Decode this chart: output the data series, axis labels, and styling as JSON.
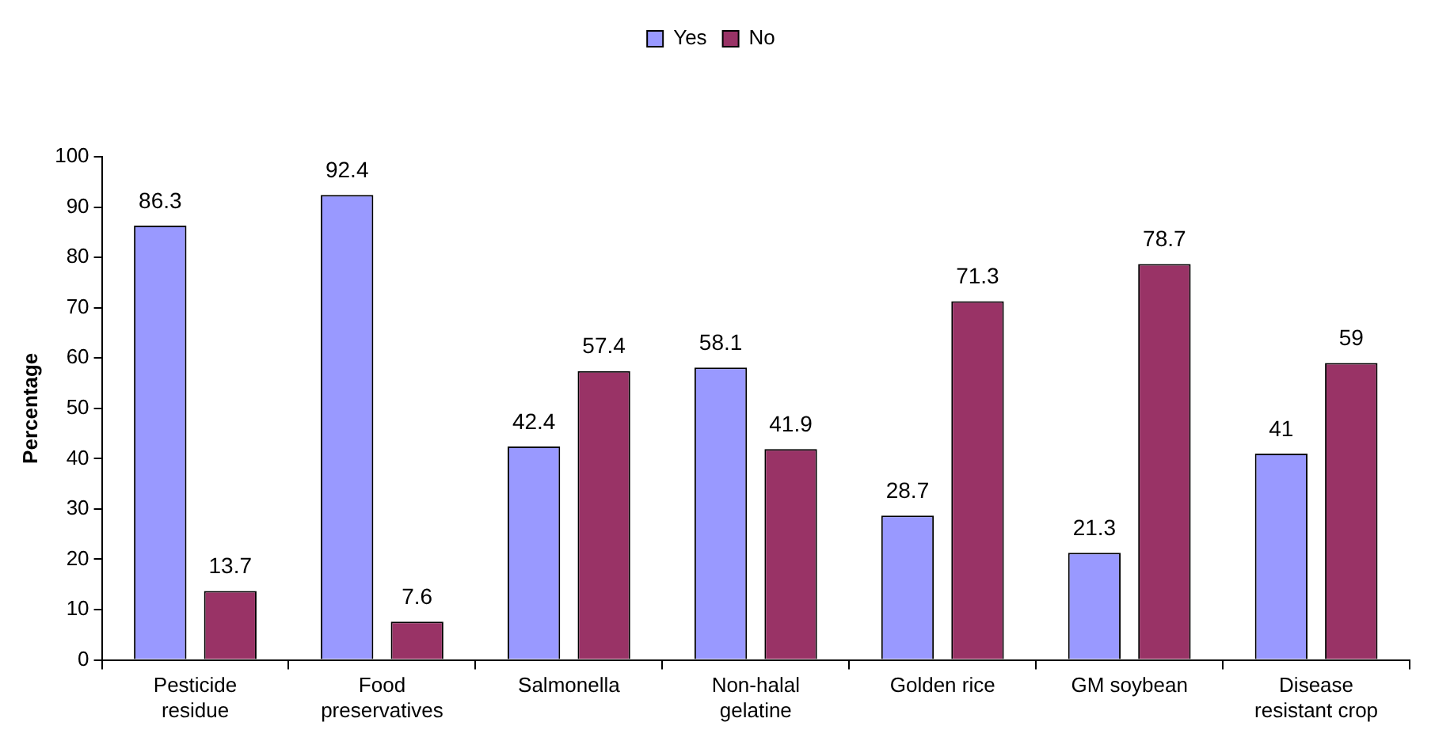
{
  "chart_data": {
    "type": "bar",
    "categories": [
      "Pesticide residue",
      "Food preservatives",
      "Salmonella",
      "Non-halal gelatine",
      "Golden rice",
      "GM soybean",
      "Disease resistant crop"
    ],
    "series": [
      {
        "name": "Yes",
        "color": "#9999ff",
        "values": [
          86.3,
          92.4,
          42.4,
          58.1,
          28.7,
          21.3,
          41
        ]
      },
      {
        "name": "No",
        "color": "#993366",
        "values": [
          13.7,
          7.6,
          57.4,
          41.9,
          71.3,
          78.7,
          59
        ]
      }
    ],
    "ylabel": "Percentage",
    "ylim": [
      0,
      100
    ],
    "yticks": [
      0,
      10,
      20,
      30,
      40,
      50,
      60,
      70,
      80,
      90,
      100
    ],
    "grid": false,
    "legend": "top",
    "data_labels": true
  }
}
